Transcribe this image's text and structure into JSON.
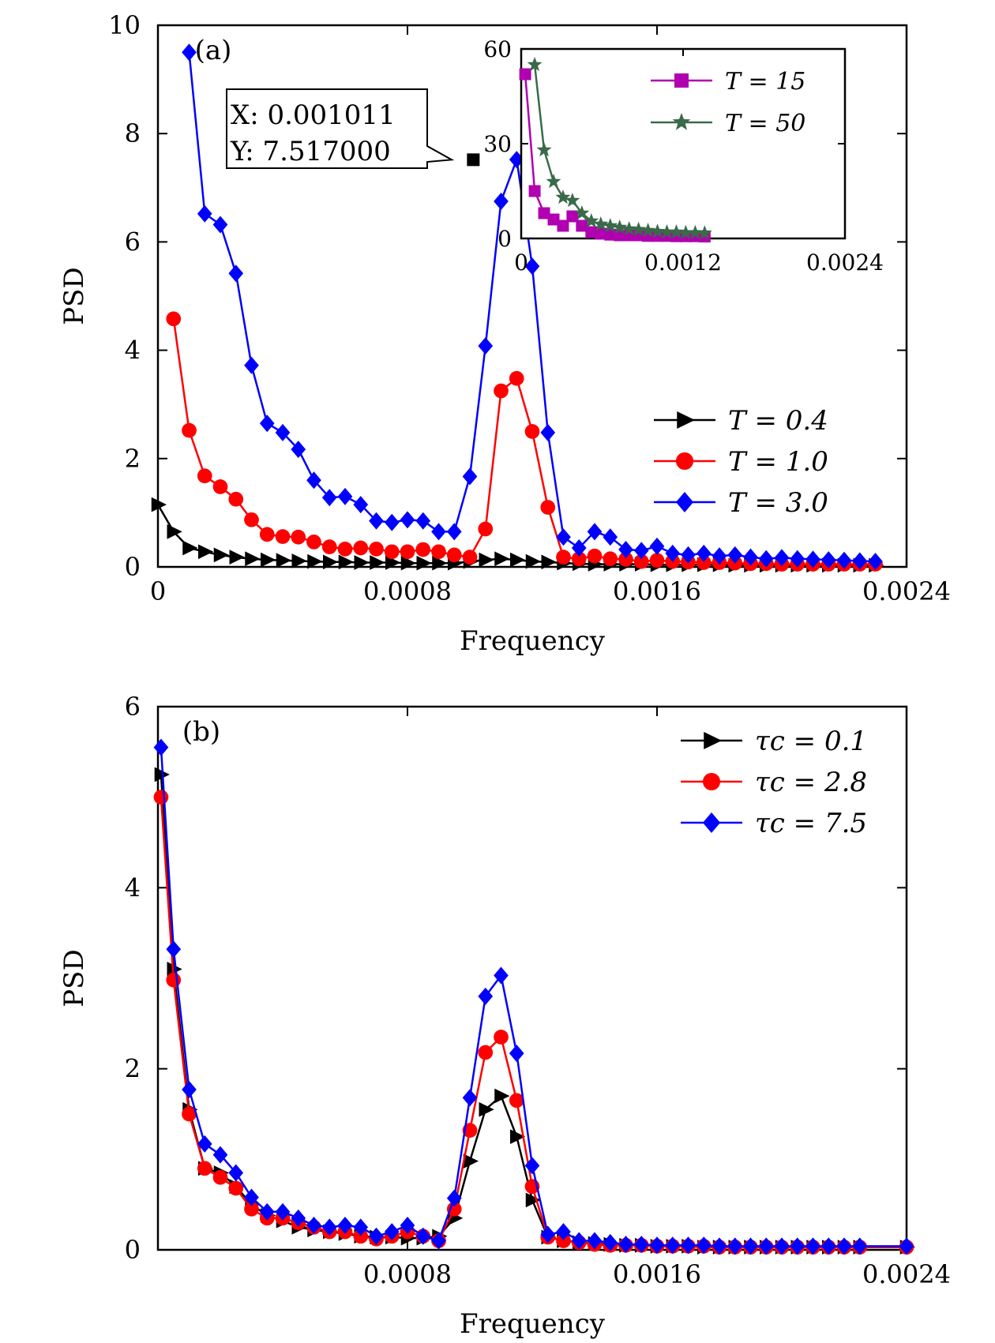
{
  "chart_data": [
    {
      "type": "line",
      "panel_label": "(a)",
      "xlabel": "Frequency",
      "ylabel": "PSD",
      "xlim": [
        0,
        0.0024
      ],
      "ylim": [
        0,
        10
      ],
      "xticks": [
        "0",
        "0.0008",
        "0.0016",
        "0.0024"
      ],
      "yticks": [
        "0",
        "2",
        "4",
        "6",
        "8",
        "10"
      ],
      "legend": {
        "position": "right-middle",
        "entries": [
          "T = 0.4",
          "T = 1.0",
          "T = 3.0"
        ]
      },
      "annotation": {
        "x": 0.001011,
        "y": 7.517,
        "line1": "X: 0.001011",
        "line2": "Y: 7.517000"
      },
      "series": [
        {
          "name": "T = 0.4",
          "color": "#000000",
          "marker": "triangle-right",
          "x": [
            0,
            5e-05,
            0.0001,
            0.00015,
            0.0002,
            0.00025,
            0.0003,
            0.00035,
            0.0004,
            0.00045,
            0.0005,
            0.00055,
            0.0006,
            0.00065,
            0.0007,
            0.00075,
            0.0008,
            0.00085,
            0.0009,
            0.00095,
            0.001,
            0.00105,
            0.0011,
            0.00115,
            0.0012,
            0.00125,
            0.0013,
            0.00135,
            0.0014,
            0.00145,
            0.0015,
            0.00155,
            0.0016,
            0.00165,
            0.0017,
            0.00175,
            0.0018,
            0.00185,
            0.0019,
            0.00195,
            0.002,
            0.00205,
            0.0021,
            0.00215,
            0.0022,
            0.00225,
            0.0023
          ],
          "y": [
            1.15,
            0.65,
            0.35,
            0.28,
            0.22,
            0.18,
            0.15,
            0.13,
            0.12,
            0.11,
            0.1,
            0.09,
            0.09,
            0.08,
            0.08,
            0.08,
            0.07,
            0.07,
            0.07,
            0.07,
            0.1,
            0.13,
            0.15,
            0.13,
            0.1,
            0.09,
            0.07,
            0.06,
            0.05,
            0.05,
            0.05,
            0.05,
            0.04,
            0.04,
            0.04,
            0.04,
            0.04,
            0.03,
            0.03,
            0.03,
            0.03,
            0.03,
            0.03,
            0.03,
            0.03,
            0.03,
            0.03
          ]
        },
        {
          "name": "T = 1.0",
          "color": "#ff0000",
          "marker": "circle",
          "x": [
            5e-05,
            0.0001,
            0.00015,
            0.0002,
            0.00025,
            0.0003,
            0.00035,
            0.0004,
            0.00045,
            0.0005,
            0.00055,
            0.0006,
            0.00065,
            0.0007,
            0.00075,
            0.0008,
            0.00085,
            0.0009,
            0.00095,
            0.001,
            0.00105,
            0.0011,
            0.00115,
            0.0012,
            0.00125,
            0.0013,
            0.00135,
            0.0014,
            0.00145,
            0.0015,
            0.00155,
            0.0016,
            0.00165,
            0.0017,
            0.00175,
            0.0018,
            0.00185,
            0.0019,
            0.00195,
            0.002,
            0.00205,
            0.0021,
            0.00215,
            0.0022,
            0.00225,
            0.0023
          ],
          "y": [
            4.58,
            2.52,
            1.68,
            1.48,
            1.25,
            0.87,
            0.6,
            0.56,
            0.55,
            0.46,
            0.37,
            0.33,
            0.35,
            0.33,
            0.28,
            0.28,
            0.32,
            0.28,
            0.22,
            0.18,
            0.7,
            3.25,
            3.48,
            2.5,
            1.1,
            0.18,
            0.15,
            0.2,
            0.15,
            0.14,
            0.1,
            0.12,
            0.1,
            0.09,
            0.08,
            0.08,
            0.07,
            0.06,
            0.06,
            0.05,
            0.05,
            0.05,
            0.05,
            0.05,
            0.05,
            0.05
          ]
        },
        {
          "name": "T = 3.0",
          "color": "#0000ff",
          "marker": "diamond",
          "x": [
            0.0001,
            0.00015,
            0.0002,
            0.00025,
            0.0003,
            0.00035,
            0.0004,
            0.00045,
            0.0005,
            0.00055,
            0.0006,
            0.00065,
            0.0007,
            0.00075,
            0.0008,
            0.00085,
            0.0009,
            0.00095,
            0.001,
            0.00105,
            0.0011,
            0.00115,
            0.0012,
            0.00125,
            0.0013,
            0.00135,
            0.0014,
            0.00145,
            0.0015,
            0.00155,
            0.0016,
            0.00165,
            0.0017,
            0.00175,
            0.0018,
            0.00185,
            0.0019,
            0.00195,
            0.002,
            0.00205,
            0.0021,
            0.00215,
            0.0022,
            0.00225,
            0.0023
          ],
          "y": [
            9.5,
            6.52,
            6.32,
            5.42,
            3.72,
            2.65,
            2.48,
            2.17,
            1.6,
            1.28,
            1.3,
            1.15,
            0.85,
            0.82,
            0.87,
            0.85,
            0.65,
            0.65,
            1.67,
            4.08,
            6.75,
            7.52,
            5.55,
            2.48,
            0.55,
            0.35,
            0.65,
            0.55,
            0.32,
            0.3,
            0.38,
            0.25,
            0.22,
            0.25,
            0.2,
            0.22,
            0.18,
            0.15,
            0.17,
            0.15,
            0.14,
            0.13,
            0.12,
            0.11,
            0.1
          ]
        }
      ],
      "inset": {
        "type": "line",
        "xlim": [
          0,
          0.0024
        ],
        "ylim": [
          0,
          60
        ],
        "xticks": [
          "0",
          "0.0012",
          "0.0024"
        ],
        "yticks": [
          "0",
          "30",
          "60"
        ],
        "legend": {
          "position": "top-right",
          "entries": [
            "T = 15",
            "T = 50"
          ]
        },
        "series": [
          {
            "name": "T = 15",
            "color": "#b000b0",
            "marker": "square",
            "x": [
              3e-05,
              0.0001,
              0.00017,
              0.00024,
              0.00031,
              0.00038,
              0.00045,
              0.00052,
              0.00059,
              0.00066,
              0.00073,
              0.0008,
              0.00087,
              0.00094,
              0.00101,
              0.00108,
              0.00115,
              0.00122,
              0.00129,
              0.00136
            ],
            "y": [
              52,
              15,
              8,
              6,
              4,
              7,
              4,
              2,
              1.5,
              1.2,
              1,
              1,
              1,
              0.8,
              0.8,
              0.8,
              0.7,
              0.7,
              0.7,
              0.6
            ]
          },
          {
            "name": "T = 50",
            "color": "#3a6a4a",
            "marker": "star",
            "x": [
              0.0001,
              0.00017,
              0.00024,
              0.00031,
              0.00038,
              0.00045,
              0.00052,
              0.00059,
              0.00066,
              0.00073,
              0.0008,
              0.00087,
              0.00094,
              0.00101,
              0.00108,
              0.00115,
              0.00122,
              0.00129,
              0.00136
            ],
            "y": [
              55,
              28,
              18,
              13,
              12,
              8,
              5.5,
              4.5,
              4,
              3.5,
              3,
              2.8,
              2.5,
              2.2,
              2,
              2,
              1.8,
              1.8,
              1.7
            ]
          }
        ]
      }
    },
    {
      "type": "line",
      "panel_label": "(b)",
      "xlabel": "Frequency",
      "ylabel": "PSD",
      "xlim": [
        0,
        0.0024
      ],
      "ylim": [
        0,
        6
      ],
      "xticks": [
        "0.0008",
        "0.0016",
        "0.0024"
      ],
      "yticks": [
        "0",
        "2",
        "4",
        "6"
      ],
      "legend": {
        "position": "top-right",
        "entries": [
          "τc = 0.1",
          "τc = 2.8",
          "τc = 7.5"
        ]
      },
      "series": [
        {
          "name": "τc = 0.1",
          "color": "#000000",
          "marker": "triangle-right",
          "x": [
            1e-05,
            5e-05,
            0.0001,
            0.00015,
            0.0002,
            0.00025,
            0.0003,
            0.00035,
            0.0004,
            0.00045,
            0.0005,
            0.00055,
            0.0006,
            0.00065,
            0.0007,
            0.00075,
            0.0008,
            0.00085,
            0.0009,
            0.00095,
            0.001,
            0.00105,
            0.0011,
            0.00115,
            0.0012,
            0.00125,
            0.0013,
            0.00135,
            0.0014,
            0.00145,
            0.0015,
            0.00155,
            0.0016,
            0.00165,
            0.0017,
            0.00175,
            0.0018,
            0.00185,
            0.0019,
            0.00195,
            0.002,
            0.00205,
            0.0021,
            0.00215,
            0.0022,
            0.00225,
            0.0024
          ],
          "y": [
            5.25,
            3.1,
            1.55,
            0.9,
            0.85,
            0.7,
            0.5,
            0.38,
            0.32,
            0.25,
            0.22,
            0.2,
            0.18,
            0.15,
            0.14,
            0.14,
            0.13,
            0.13,
            0.15,
            0.35,
            0.98,
            1.55,
            1.7,
            1.25,
            0.55,
            0.14,
            0.1,
            0.08,
            0.07,
            0.06,
            0.05,
            0.05,
            0.04,
            0.04,
            0.04,
            0.03,
            0.03,
            0.03,
            0.03,
            0.03,
            0.03,
            0.03,
            0.03,
            0.03,
            0.03,
            0.03,
            0.03
          ]
        },
        {
          "name": "τc = 2.8",
          "color": "#ff0000",
          "marker": "circle",
          "x": [
            1e-05,
            5e-05,
            0.0001,
            0.00015,
            0.0002,
            0.00025,
            0.0003,
            0.00035,
            0.0004,
            0.00045,
            0.0005,
            0.00055,
            0.0006,
            0.00065,
            0.0007,
            0.00075,
            0.0008,
            0.00085,
            0.0009,
            0.00095,
            0.001,
            0.00105,
            0.0011,
            0.00115,
            0.0012,
            0.00125,
            0.0013,
            0.00135,
            0.0014,
            0.00145,
            0.0015,
            0.00155,
            0.0016,
            0.00165,
            0.0017,
            0.00175,
            0.0018,
            0.00185,
            0.0019,
            0.00195,
            0.002,
            0.00205,
            0.0021,
            0.00215,
            0.0022,
            0.00225,
            0.0024
          ],
          "y": [
            5.0,
            2.98,
            1.5,
            0.9,
            0.8,
            0.68,
            0.45,
            0.35,
            0.35,
            0.3,
            0.25,
            0.2,
            0.2,
            0.15,
            0.12,
            0.15,
            0.2,
            0.15,
            0.1,
            0.45,
            1.32,
            2.18,
            2.35,
            1.65,
            0.7,
            0.14,
            0.1,
            0.08,
            0.06,
            0.05,
            0.05,
            0.05,
            0.04,
            0.04,
            0.04,
            0.04,
            0.03,
            0.03,
            0.03,
            0.03,
            0.03,
            0.03,
            0.03,
            0.03,
            0.03,
            0.03,
            0.03
          ]
        },
        {
          "name": "τc = 7.5",
          "color": "#0000ff",
          "marker": "diamond",
          "x": [
            1e-05,
            5e-05,
            0.0001,
            0.00015,
            0.0002,
            0.00025,
            0.0003,
            0.00035,
            0.0004,
            0.00045,
            0.0005,
            0.00055,
            0.0006,
            0.00065,
            0.0007,
            0.00075,
            0.0008,
            0.00085,
            0.0009,
            0.00095,
            0.001,
            0.00105,
            0.0011,
            0.00115,
            0.0012,
            0.00125,
            0.0013,
            0.00135,
            0.0014,
            0.00145,
            0.0015,
            0.00155,
            0.0016,
            0.00165,
            0.0017,
            0.00175,
            0.0018,
            0.00185,
            0.0019,
            0.00195,
            0.002,
            0.00205,
            0.0021,
            0.00215,
            0.0022,
            0.00225,
            0.0024
          ],
          "y": [
            5.55,
            3.32,
            1.77,
            1.17,
            1.05,
            0.85,
            0.58,
            0.42,
            0.42,
            0.35,
            0.27,
            0.25,
            0.27,
            0.25,
            0.15,
            0.2,
            0.27,
            0.15,
            0.1,
            0.57,
            1.68,
            2.8,
            3.03,
            2.17,
            0.93,
            0.17,
            0.2,
            0.1,
            0.1,
            0.08,
            0.06,
            0.06,
            0.05,
            0.05,
            0.05,
            0.05,
            0.04,
            0.04,
            0.04,
            0.04,
            0.04,
            0.04,
            0.04,
            0.04,
            0.04,
            0.04,
            0.04
          ]
        }
      ]
    }
  ]
}
